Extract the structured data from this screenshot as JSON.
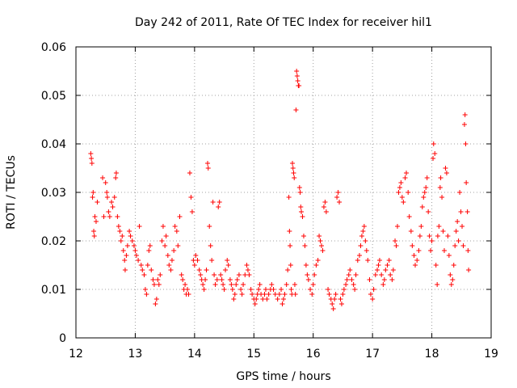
{
  "chart_data": {
    "type": "scatter",
    "title": "Day 242 of 2011, Rate Of TEC Index for receiver hil1",
    "xlabel": "GPS time / hours",
    "ylabel": "ROTI / TECUs",
    "xlim": [
      12,
      19
    ],
    "ylim": [
      0,
      0.06
    ],
    "xticks": [
      "12",
      "13",
      "14",
      "15",
      "16",
      "17",
      "18",
      "19"
    ],
    "yticks": [
      "0",
      "0.01",
      "0.02",
      "0.03",
      "0.04",
      "0.05",
      "0.06"
    ],
    "grid": true,
    "marker": "plus",
    "color": "#ff0000",
    "series": [
      {
        "points": [
          [
            12.25,
            0.038
          ],
          [
            12.26,
            0.037
          ],
          [
            12.27,
            0.036
          ],
          [
            12.28,
            0.029
          ],
          [
            12.29,
            0.03
          ],
          [
            12.3,
            0.022
          ],
          [
            12.31,
            0.021
          ],
          [
            12.32,
            0.025
          ],
          [
            12.34,
            0.024
          ],
          [
            12.36,
            0.028
          ],
          [
            12.45,
            0.033
          ],
          [
            12.47,
            0.025
          ],
          [
            12.5,
            0.032
          ],
          [
            12.52,
            0.03
          ],
          [
            12.53,
            0.029
          ],
          [
            12.55,
            0.026
          ],
          [
            12.57,
            0.025
          ],
          [
            12.6,
            0.028
          ],
          [
            12.62,
            0.027
          ],
          [
            12.65,
            0.029
          ],
          [
            12.67,
            0.033
          ],
          [
            12.68,
            0.034
          ],
          [
            12.7,
            0.025
          ],
          [
            12.72,
            0.023
          ],
          [
            12.74,
            0.022
          ],
          [
            12.76,
            0.02
          ],
          [
            12.78,
            0.021
          ],
          [
            12.8,
            0.018
          ],
          [
            12.82,
            0.016
          ],
          [
            12.83,
            0.014
          ],
          [
            12.85,
            0.017
          ],
          [
            12.87,
            0.019
          ],
          [
            12.9,
            0.022
          ],
          [
            12.92,
            0.021
          ],
          [
            12.95,
            0.02
          ],
          [
            12.98,
            0.019
          ],
          [
            13.0,
            0.018
          ],
          [
            13.02,
            0.017
          ],
          [
            13.05,
            0.016
          ],
          [
            13.07,
            0.023
          ],
          [
            13.1,
            0.015
          ],
          [
            13.12,
            0.014
          ],
          [
            13.15,
            0.013
          ],
          [
            13.17,
            0.01
          ],
          [
            13.19,
            0.009
          ],
          [
            13.21,
            0.015
          ],
          [
            13.23,
            0.018
          ],
          [
            13.25,
            0.019
          ],
          [
            13.27,
            0.014
          ],
          [
            13.3,
            0.012
          ],
          [
            13.32,
            0.011
          ],
          [
            13.34,
            0.007
          ],
          [
            13.36,
            0.008
          ],
          [
            13.38,
            0.012
          ],
          [
            13.4,
            0.011
          ],
          [
            13.42,
            0.013
          ],
          [
            13.45,
            0.02
          ],
          [
            13.47,
            0.023
          ],
          [
            13.5,
            0.019
          ],
          [
            13.52,
            0.021
          ],
          [
            13.55,
            0.017
          ],
          [
            13.57,
            0.015
          ],
          [
            13.6,
            0.014
          ],
          [
            13.62,
            0.016
          ],
          [
            13.65,
            0.018
          ],
          [
            13.67,
            0.023
          ],
          [
            13.7,
            0.022
          ],
          [
            13.72,
            0.019
          ],
          [
            13.75,
            0.025
          ],
          [
            13.78,
            0.013
          ],
          [
            13.8,
            0.012
          ],
          [
            13.82,
            0.01
          ],
          [
            13.84,
            0.011
          ],
          [
            13.86,
            0.009
          ],
          [
            13.88,
            0.01
          ],
          [
            13.9,
            0.009
          ],
          [
            13.92,
            0.034
          ],
          [
            13.94,
            0.029
          ],
          [
            13.96,
            0.026
          ],
          [
            13.98,
            0.016
          ],
          [
            14.0,
            0.015
          ],
          [
            14.02,
            0.017
          ],
          [
            14.05,
            0.016
          ],
          [
            14.08,
            0.014
          ],
          [
            14.1,
            0.013
          ],
          [
            14.12,
            0.012
          ],
          [
            14.14,
            0.011
          ],
          [
            14.16,
            0.01
          ],
          [
            14.18,
            0.012
          ],
          [
            14.2,
            0.014
          ],
          [
            14.22,
            0.036
          ],
          [
            14.23,
            0.035
          ],
          [
            14.25,
            0.023
          ],
          [
            14.27,
            0.019
          ],
          [
            14.29,
            0.016
          ],
          [
            14.31,
            0.028
          ],
          [
            14.33,
            0.013
          ],
          [
            14.35,
            0.011
          ],
          [
            14.38,
            0.012
          ],
          [
            14.4,
            0.027
          ],
          [
            14.42,
            0.028
          ],
          [
            14.44,
            0.013
          ],
          [
            14.46,
            0.012
          ],
          [
            14.48,
            0.011
          ],
          [
            14.5,
            0.01
          ],
          [
            14.52,
            0.014
          ],
          [
            14.55,
            0.016
          ],
          [
            14.57,
            0.015
          ],
          [
            14.6,
            0.012
          ],
          [
            14.62,
            0.011
          ],
          [
            14.64,
            0.01
          ],
          [
            14.66,
            0.008
          ],
          [
            14.68,
            0.009
          ],
          [
            14.7,
            0.011
          ],
          [
            14.72,
            0.012
          ],
          [
            14.75,
            0.013
          ],
          [
            14.78,
            0.01
          ],
          [
            14.8,
            0.009
          ],
          [
            14.82,
            0.011
          ],
          [
            14.85,
            0.013
          ],
          [
            14.88,
            0.015
          ],
          [
            14.9,
            0.014
          ],
          [
            14.92,
            0.013
          ],
          [
            14.95,
            0.01
          ],
          [
            14.97,
            0.009
          ],
          [
            15.0,
            0.008
          ],
          [
            15.02,
            0.007
          ],
          [
            15.04,
            0.008
          ],
          [
            15.06,
            0.009
          ],
          [
            15.08,
            0.01
          ],
          [
            15.1,
            0.011
          ],
          [
            15.12,
            0.009
          ],
          [
            15.15,
            0.008
          ],
          [
            15.18,
            0.009
          ],
          [
            15.2,
            0.01
          ],
          [
            15.22,
            0.008
          ],
          [
            15.25,
            0.009
          ],
          [
            15.28,
            0.01
          ],
          [
            15.3,
            0.011
          ],
          [
            15.33,
            0.01
          ],
          [
            15.36,
            0.009
          ],
          [
            15.4,
            0.008
          ],
          [
            15.43,
            0.009
          ],
          [
            15.46,
            0.01
          ],
          [
            15.48,
            0.007
          ],
          [
            15.5,
            0.008
          ],
          [
            15.52,
            0.009
          ],
          [
            15.55,
            0.011
          ],
          [
            15.57,
            0.014
          ],
          [
            15.59,
            0.029
          ],
          [
            15.6,
            0.022
          ],
          [
            15.61,
            0.019
          ],
          [
            15.62,
            0.015
          ],
          [
            15.63,
            0.01
          ],
          [
            15.64,
            0.009
          ],
          [
            15.65,
            0.036
          ],
          [
            15.66,
            0.035
          ],
          [
            15.67,
            0.034
          ],
          [
            15.68,
            0.033
          ],
          [
            15.69,
            0.011
          ],
          [
            15.7,
            0.009
          ],
          [
            15.71,
            0.047
          ],
          [
            15.72,
            0.055
          ],
          [
            15.73,
            0.054
          ],
          [
            15.74,
            0.053
          ],
          [
            15.75,
            0.052
          ],
          [
            15.76,
            0.052
          ],
          [
            15.77,
            0.031
          ],
          [
            15.78,
            0.03
          ],
          [
            15.79,
            0.027
          ],
          [
            15.8,
            0.026
          ],
          [
            15.82,
            0.025
          ],
          [
            15.84,
            0.021
          ],
          [
            15.86,
            0.019
          ],
          [
            15.88,
            0.015
          ],
          [
            15.9,
            0.013
          ],
          [
            15.92,
            0.012
          ],
          [
            15.95,
            0.01
          ],
          [
            15.98,
            0.009
          ],
          [
            16.0,
            0.011
          ],
          [
            16.02,
            0.013
          ],
          [
            16.05,
            0.015
          ],
          [
            16.08,
            0.016
          ],
          [
            16.1,
            0.021
          ],
          [
            16.12,
            0.02
          ],
          [
            16.14,
            0.019
          ],
          [
            16.16,
            0.018
          ],
          [
            16.18,
            0.027
          ],
          [
            16.2,
            0.028
          ],
          [
            16.22,
            0.026
          ],
          [
            16.25,
            0.01
          ],
          [
            16.27,
            0.009
          ],
          [
            16.3,
            0.008
          ],
          [
            16.32,
            0.007
          ],
          [
            16.34,
            0.006
          ],
          [
            16.36,
            0.008
          ],
          [
            16.38,
            0.009
          ],
          [
            16.4,
            0.029
          ],
          [
            16.42,
            0.03
          ],
          [
            16.44,
            0.028
          ],
          [
            16.46,
            0.008
          ],
          [
            16.48,
            0.007
          ],
          [
            16.5,
            0.009
          ],
          [
            16.52,
            0.01
          ],
          [
            16.55,
            0.011
          ],
          [
            16.57,
            0.012
          ],
          [
            16.6,
            0.013
          ],
          [
            16.62,
            0.014
          ],
          [
            16.65,
            0.012
          ],
          [
            16.68,
            0.011
          ],
          [
            16.7,
            0.01
          ],
          [
            16.72,
            0.013
          ],
          [
            16.75,
            0.016
          ],
          [
            16.78,
            0.017
          ],
          [
            16.8,
            0.019
          ],
          [
            16.82,
            0.021
          ],
          [
            16.84,
            0.022
          ],
          [
            16.86,
            0.023
          ],
          [
            16.88,
            0.02
          ],
          [
            16.9,
            0.018
          ],
          [
            16.92,
            0.016
          ],
          [
            16.95,
            0.012
          ],
          [
            16.97,
            0.009
          ],
          [
            17.0,
            0.008
          ],
          [
            17.02,
            0.01
          ],
          [
            17.05,
            0.013
          ],
          [
            17.08,
            0.014
          ],
          [
            17.1,
            0.015
          ],
          [
            17.12,
            0.016
          ],
          [
            17.15,
            0.013
          ],
          [
            17.18,
            0.011
          ],
          [
            17.2,
            0.012
          ],
          [
            17.22,
            0.014
          ],
          [
            17.25,
            0.015
          ],
          [
            17.28,
            0.016
          ],
          [
            17.3,
            0.013
          ],
          [
            17.33,
            0.012
          ],
          [
            17.35,
            0.014
          ],
          [
            17.38,
            0.02
          ],
          [
            17.4,
            0.019
          ],
          [
            17.42,
            0.023
          ],
          [
            17.44,
            0.03
          ],
          [
            17.46,
            0.031
          ],
          [
            17.48,
            0.032
          ],
          [
            17.5,
            0.029
          ],
          [
            17.52,
            0.028
          ],
          [
            17.55,
            0.033
          ],
          [
            17.57,
            0.034
          ],
          [
            17.6,
            0.03
          ],
          [
            17.62,
            0.025
          ],
          [
            17.65,
            0.022
          ],
          [
            17.67,
            0.019
          ],
          [
            17.7,
            0.017
          ],
          [
            17.72,
            0.015
          ],
          [
            17.75,
            0.016
          ],
          [
            17.78,
            0.018
          ],
          [
            17.8,
            0.021
          ],
          [
            17.82,
            0.023
          ],
          [
            17.84,
            0.027
          ],
          [
            17.86,
            0.029
          ],
          [
            17.88,
            0.03
          ],
          [
            17.9,
            0.031
          ],
          [
            17.92,
            0.033
          ],
          [
            17.94,
            0.026
          ],
          [
            17.96,
            0.021
          ],
          [
            17.98,
            0.018
          ],
          [
            18.0,
            0.02
          ],
          [
            18.02,
            0.037
          ],
          [
            18.03,
            0.04
          ],
          [
            18.05,
            0.038
          ],
          [
            18.07,
            0.015
          ],
          [
            18.09,
            0.011
          ],
          [
            18.1,
            0.021
          ],
          [
            18.12,
            0.023
          ],
          [
            18.14,
            0.031
          ],
          [
            18.15,
            0.033
          ],
          [
            18.17,
            0.029
          ],
          [
            18.19,
            0.022
          ],
          [
            18.21,
            0.018
          ],
          [
            18.23,
            0.035
          ],
          [
            18.25,
            0.034
          ],
          [
            18.27,
            0.021
          ],
          [
            18.29,
            0.017
          ],
          [
            18.31,
            0.013
          ],
          [
            18.33,
            0.011
          ],
          [
            18.35,
            0.012
          ],
          [
            18.37,
            0.015
          ],
          [
            18.39,
            0.019
          ],
          [
            18.41,
            0.022
          ],
          [
            18.43,
            0.024
          ],
          [
            18.45,
            0.02
          ],
          [
            18.47,
            0.03
          ],
          [
            18.49,
            0.026
          ],
          [
            18.51,
            0.023
          ],
          [
            18.53,
            0.019
          ],
          [
            18.55,
            0.044
          ],
          [
            18.56,
            0.046
          ],
          [
            18.57,
            0.04
          ],
          [
            18.58,
            0.032
          ],
          [
            18.6,
            0.026
          ],
          [
            18.61,
            0.018
          ],
          [
            18.62,
            0.014
          ]
        ]
      }
    ]
  }
}
